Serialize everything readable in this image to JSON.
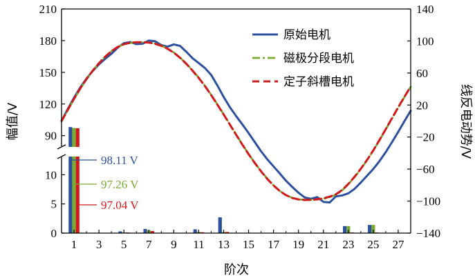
{
  "chart_data": {
    "type": "line",
    "xlabel": "阶次",
    "ylabel_left": "幅值/V",
    "ylabel_right": "线反电动势/V",
    "x_ticks": [
      "1",
      "3",
      "5",
      "7",
      "9",
      "11",
      "13",
      "15",
      "17",
      "19",
      "21",
      "23",
      "25",
      "27"
    ],
    "x_range": [
      0,
      28
    ],
    "left_upper": {
      "range": [
        80,
        210
      ],
      "ticks": [
        "90",
        "120",
        "150",
        "180",
        "210"
      ]
    },
    "left_lower": {
      "range": [
        0,
        13
      ],
      "ticks": [
        "0",
        "5",
        "10"
      ]
    },
    "right_axis": {
      "range": [
        -140,
        140
      ],
      "ticks": [
        "−140",
        "−100",
        "−60",
        "−20",
        "20",
        "60",
        "100",
        "140"
      ]
    },
    "colors": {
      "original": "#2c4f9e",
      "segmented": "#7aaa2e",
      "skewed": "#d0191c"
    },
    "waveform": {
      "phase_x": [
        0.0,
        0.5,
        1.0,
        1.5,
        2.0,
        2.5,
        3.0,
        3.5,
        4.0,
        4.5,
        5.0,
        5.5,
        6.0,
        6.5,
        7.0,
        7.5,
        8.0,
        8.5,
        9.0,
        9.5,
        10.0,
        10.5,
        11.0,
        11.5,
        12.0,
        12.5,
        13.0,
        13.5,
        14.0,
        14.5,
        15.0,
        15.5,
        16.0,
        16.5,
        17.0,
        17.5,
        18.0,
        18.5,
        19.0,
        19.5,
        20.0,
        20.5,
        21.0,
        21.5,
        22.0,
        22.5,
        23.0,
        23.5,
        24.0,
        24.5,
        25.0,
        25.5,
        26.0,
        26.5,
        27.0,
        27.5,
        28.0
      ],
      "series": [
        {
          "name": "原始电机",
          "color": "#2c4f9e",
          "dash": "solid",
          "values": [
            0.0,
            15.0,
            29.1,
            41.9,
            53.0,
            62.5,
            70.7,
            77.7,
            84.0,
            91.6,
            97.3,
            98.6,
            96.1,
            96.6,
            100.5,
            99.7,
            94.9,
            92.9,
            95.7,
            93.9,
            86.6,
            78.6,
            72.4,
            66.2,
            57.6,
            44.4,
            30.1,
            17.3,
            6.2,
            -4.2,
            -15.0,
            -26.4,
            -37.8,
            -47.8,
            -56.7,
            -65.5,
            -74.6,
            -82.3,
            -89.5,
            -95.5,
            -97.1,
            -95.0,
            -101.0,
            -101.8,
            -94.1,
            -93.0,
            -90.3,
            -84.7,
            -76.8,
            -68.3,
            -59.9,
            -50.0,
            -38.8,
            -26.4,
            -13.5,
            -0.1,
            12.9
          ]
        },
        {
          "name": "磁极分段电机",
          "color": "#7aaa2e",
          "dash": "dashdot",
          "values": [
            0.0,
            13.6,
            27.2,
            40.2,
            52.0,
            62.7,
            72.3,
            80.5,
            87.4,
            92.5,
            95.8,
            97.5,
            98.2,
            98.5,
            98.2,
            96.8,
            94.3,
            90.6,
            85.6,
            79.3,
            71.8,
            63.3,
            54.2,
            44.0,
            32.8,
            20.8,
            8.5,
            -4.1,
            -16.8,
            -29.2,
            -41.1,
            -52.2,
            -62.6,
            -72.1,
            -80.4,
            -87.3,
            -92.5,
            -96.0,
            -97.8,
            -98.5,
            -98.5,
            -98.0,
            -97.0,
            -95.0,
            -92.0,
            -86.7,
            -79.0,
            -70.0,
            -60.0,
            -49.0,
            -37.0,
            -24.0,
            -10.5,
            3.2,
            16.8,
            30.0,
            42.7
          ]
        },
        {
          "name": "定子斜槽电机",
          "color": "#d0191c",
          "dash": "dashed",
          "values": [
            0.0,
            13.9,
            27.8,
            40.8,
            52.4,
            62.9,
            72.2,
            80.3,
            87.2,
            92.5,
            96.0,
            97.8,
            98.4,
            98.5,
            98.0,
            96.5,
            94.0,
            90.3,
            85.4,
            79.1,
            71.6,
            63.0,
            53.8,
            43.6,
            32.4,
            20.4,
            8.1,
            -4.5,
            -17.1,
            -29.5,
            -41.4,
            -52.5,
            -62.9,
            -72.3,
            -80.5,
            -87.4,
            -92.6,
            -96.1,
            -97.9,
            -98.6,
            -98.4,
            -97.8,
            -96.6,
            -94.5,
            -91.5,
            -86.2,
            -78.6,
            -69.6,
            -59.6,
            -48.6,
            -36.6,
            -23.6,
            -10.1,
            3.6,
            17.2,
            30.4,
            43.1
          ]
        }
      ]
    },
    "harmonics": {
      "orders": [
        1,
        5,
        7,
        11,
        13,
        23,
        25
      ],
      "series": [
        {
          "name": "原始电机",
          "color": "#2c4f9e",
          "values": [
            98.11,
            0.3,
            0.7,
            0.65,
            2.7,
            1.2,
            1.4
          ]
        },
        {
          "name": "磁极分段电机",
          "color": "#7aaa2e",
          "values": [
            97.26,
            0.1,
            0.5,
            0.2,
            0.2,
            1.2,
            1.4
          ]
        },
        {
          "name": "定子斜槽电机",
          "color": "#d0191c",
          "values": [
            97.04,
            0.1,
            0.35,
            0.15,
            0.2,
            0.1,
            0.1
          ]
        }
      ],
      "fundamental_labels": [
        "98.11 V",
        "97.26 V",
        "97.04 V"
      ]
    },
    "legend": {
      "placement": "top-right",
      "entries": [
        "原始电机",
        "磁极分段电机",
        "定子斜槽电机"
      ]
    }
  }
}
